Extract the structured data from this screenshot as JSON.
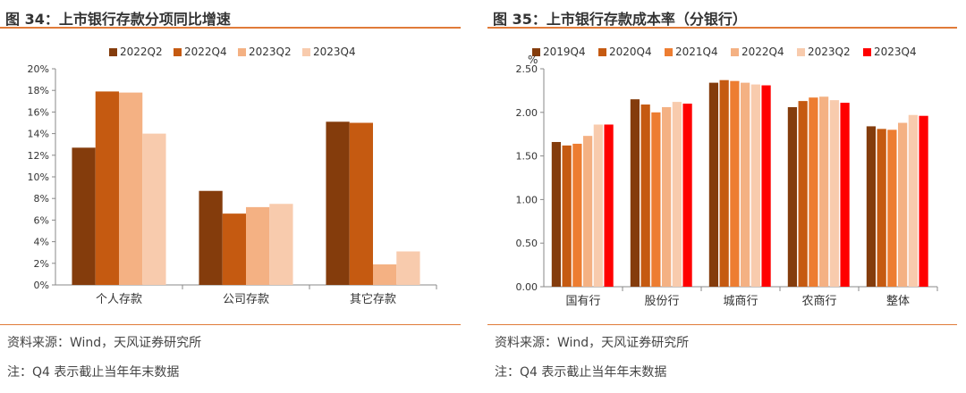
{
  "left": {
    "figure_title": "图 34：上市银行存款分项同比增速",
    "source": "资料来源：Wind，天风证券研究所",
    "note": "注：Q4 表示截止当年年末数据"
  },
  "right": {
    "figure_title": "图 35：上市银行存款成本率（分银行）",
    "source": "资料来源：Wind，天风证券研究所",
    "note": "注：Q4 表示截止当年年末数据"
  },
  "chart_data": [
    {
      "type": "bar",
      "title": "",
      "categories": [
        "个人存款",
        "公司存款",
        "其它存款"
      ],
      "series": [
        {
          "name": "2022Q2",
          "values": [
            12.7,
            8.7,
            15.1
          ],
          "color": "#843c0c"
        },
        {
          "name": "2022Q4",
          "values": [
            17.9,
            6.6,
            15.0
          ],
          "color": "#c55a11"
        },
        {
          "name": "2023Q2",
          "values": [
            17.8,
            7.2,
            1.9
          ],
          "color": "#f4b183"
        },
        {
          "name": "2023Q4",
          "values": [
            14.0,
            7.5,
            3.1
          ],
          "color": "#f8cbad"
        }
      ],
      "ylim": [
        0,
        20
      ],
      "yticks": [
        "0%",
        "2%",
        "4%",
        "6%",
        "8%",
        "10%",
        "12%",
        "14%",
        "16%",
        "18%",
        "20%"
      ],
      "ylabel": "",
      "xlabel": "",
      "grid": false,
      "legend": "top"
    },
    {
      "type": "bar",
      "title": "",
      "categories": [
        "国有行",
        "股份行",
        "城商行",
        "农商行",
        "整体"
      ],
      "series": [
        {
          "name": "2019Q4",
          "values": [
            1.66,
            2.15,
            2.34,
            2.06,
            1.84
          ],
          "color": "#843c0c"
        },
        {
          "name": "2020Q4",
          "values": [
            1.62,
            2.09,
            2.37,
            2.13,
            1.81
          ],
          "color": "#c55a11"
        },
        {
          "name": "2021Q4",
          "values": [
            1.64,
            2.0,
            2.36,
            2.17,
            1.8
          ],
          "color": "#ed7d31"
        },
        {
          "name": "2022Q4",
          "values": [
            1.73,
            2.06,
            2.34,
            2.18,
            1.88
          ],
          "color": "#f4b183"
        },
        {
          "name": "2023Q2",
          "values": [
            1.86,
            2.12,
            2.32,
            2.14,
            1.97
          ],
          "color": "#f8cbad"
        },
        {
          "name": "2023Q4",
          "values": [
            1.86,
            2.1,
            2.31,
            2.11,
            1.96
          ],
          "color": "#ff0000"
        }
      ],
      "ylim": [
        0,
        2.5
      ],
      "yticks": [
        "0.00",
        "0.50",
        "1.00",
        "1.50",
        "2.00",
        "2.50"
      ],
      "ylabel": "%",
      "xlabel": "",
      "grid": false,
      "legend": "top"
    }
  ]
}
